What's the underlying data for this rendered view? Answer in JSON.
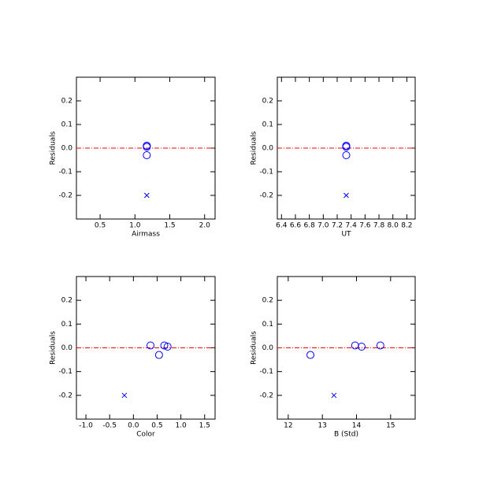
{
  "chart_data": [
    {
      "type": "scatter",
      "xlabel": "Airmass",
      "ylabel": "Residuals",
      "xlim": [
        0.16,
        2.15
      ],
      "ylim": [
        -0.3,
        0.3
      ],
      "xticks": [
        0.5,
        {
          "value": 1,
          "label": "1.0"
        },
        1.5,
        {
          "value": 2,
          "label": "2.0"
        }
      ],
      "yticks": [
        -0.2,
        -0.1,
        {
          "value": 0,
          "label": "0.0"
        },
        0.1,
        0.2
      ],
      "hline": 0,
      "hline_color": "#ff0000",
      "series": [
        {
          "marker": "circle",
          "color": "#0000ff",
          "x": [
            1.17,
            1.17,
            1.17,
            1.17
          ],
          "values": [
            0.01,
            0.005,
            -0.03,
            0.01
          ]
        },
        {
          "marker": "cross",
          "color": "#0000ff",
          "x": [
            1.17
          ],
          "values": [
            -0.2
          ]
        }
      ]
    },
    {
      "type": "scatter",
      "xlabel": "UT",
      "ylabel": "Residuals",
      "xlim": [
        6.34,
        8.32
      ],
      "ylim": [
        -0.3,
        0.3
      ],
      "xticks": [
        6.4,
        6.6,
        6.8,
        {
          "value": 7,
          "label": "7.0"
        },
        7.2,
        7.4,
        7.6,
        7.8,
        {
          "value": 8,
          "label": "8.0"
        },
        8.2
      ],
      "yticks": [
        -0.2,
        -0.1,
        {
          "value": 0,
          "label": "0.0"
        },
        0.1,
        0.2
      ],
      "hline": 0,
      "hline_color": "#ff0000",
      "series": [
        {
          "marker": "circle",
          "color": "#0000ff",
          "x": [
            7.33,
            7.33,
            7.33,
            7.33
          ],
          "values": [
            0.01,
            0.005,
            -0.03,
            0.01
          ]
        },
        {
          "marker": "cross",
          "color": "#0000ff",
          "x": [
            7.33
          ],
          "values": [
            -0.2
          ]
        }
      ]
    },
    {
      "type": "scatter",
      "xlabel": "Color",
      "ylabel": "Residuals",
      "xlim": [
        -1.2,
        1.72
      ],
      "ylim": [
        -0.3,
        0.3
      ],
      "xticks": [
        {
          "value": -1,
          "label": "-1.0"
        },
        -0.5,
        {
          "value": 0,
          "label": "0.0"
        },
        0.5,
        {
          "value": 1,
          "label": "1.0"
        },
        1.5
      ],
      "yticks": [
        -0.2,
        -0.1,
        {
          "value": 0,
          "label": "0.0"
        },
        0.1,
        0.2
      ],
      "hline": 0,
      "hline_color": "#ff0000",
      "series": [
        {
          "marker": "circle",
          "color": "#0000ff",
          "x": [
            0.36,
            0.72,
            0.54,
            0.65
          ],
          "values": [
            0.01,
            0.005,
            -0.03,
            0.01
          ]
        },
        {
          "marker": "cross",
          "color": "#0000ff",
          "x": [
            -0.19
          ],
          "values": [
            -0.2
          ]
        }
      ]
    },
    {
      "type": "scatter",
      "xlabel": "B (Std)",
      "ylabel": "Residuals",
      "xlim": [
        11.68,
        15.72
      ],
      "ylim": [
        -0.3,
        0.3
      ],
      "xticks": [
        12,
        13,
        14,
        15
      ],
      "yticks": [
        -0.2,
        -0.1,
        {
          "value": 0,
          "label": "0.0"
        },
        0.1,
        0.2
      ],
      "hline": 0,
      "hline_color": "#ff0000",
      "series": [
        {
          "marker": "circle",
          "color": "#0000ff",
          "x": [
            13.96,
            14.15,
            12.65,
            14.7
          ],
          "values": [
            0.01,
            0.005,
            -0.03,
            0.01
          ]
        },
        {
          "marker": "cross",
          "color": "#0000ff",
          "x": [
            13.34
          ],
          "values": [
            -0.2
          ]
        }
      ]
    }
  ]
}
